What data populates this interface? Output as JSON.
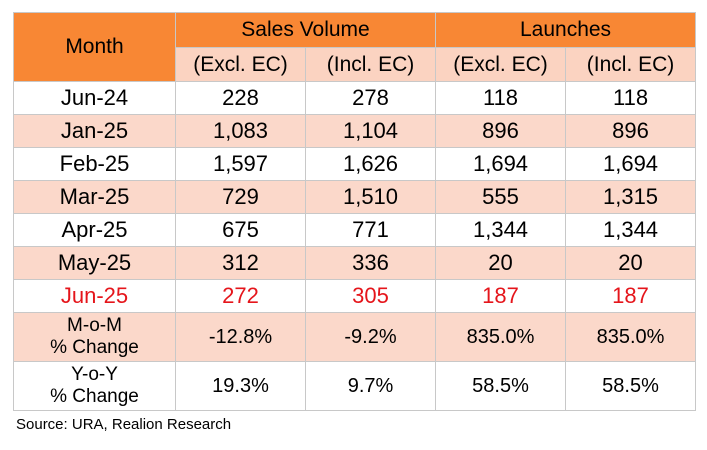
{
  "table": {
    "month_header": "Month",
    "group_headers": [
      "Sales Volume",
      "Launches"
    ],
    "sub_headers": [
      "(Excl. EC)",
      "(Incl. EC)",
      "(Excl. EC)",
      "(Incl. EC)"
    ],
    "rows": [
      {
        "month": "Jun-24",
        "values": [
          "228",
          "278",
          "118",
          "118"
        ]
      },
      {
        "month": "Jan-25",
        "values": [
          "1,083",
          "1,104",
          "896",
          "896"
        ]
      },
      {
        "month": "Feb-25",
        "values": [
          "1,597",
          "1,626",
          "1,694",
          "1,694"
        ]
      },
      {
        "month": "Mar-25",
        "values": [
          "729",
          "1,510",
          "555",
          "1,315"
        ]
      },
      {
        "month": "Apr-25",
        "values": [
          "675",
          "771",
          "1,344",
          "1,344"
        ]
      },
      {
        "month": "May-25",
        "values": [
          "312",
          "336",
          "20",
          "20"
        ]
      },
      {
        "month": "Jun-25",
        "values": [
          "272",
          "305",
          "187",
          "187"
        ]
      }
    ],
    "change_rows": [
      {
        "label_line1": "M-o-M",
        "label_line2": "% Change",
        "values": [
          "-12.8%",
          "-9.2%",
          "835.0%",
          "835.0%"
        ]
      },
      {
        "label_line1": "Y-o-Y",
        "label_line2": "% Change",
        "values": [
          "19.3%",
          "9.7%",
          "58.5%",
          "58.5%"
        ]
      }
    ]
  },
  "source": "Source: URA, Realion Research",
  "colors": {
    "header_orange": "#f88734",
    "light_peach": "#fbd8ca",
    "highlight_red": "#e5151b"
  }
}
